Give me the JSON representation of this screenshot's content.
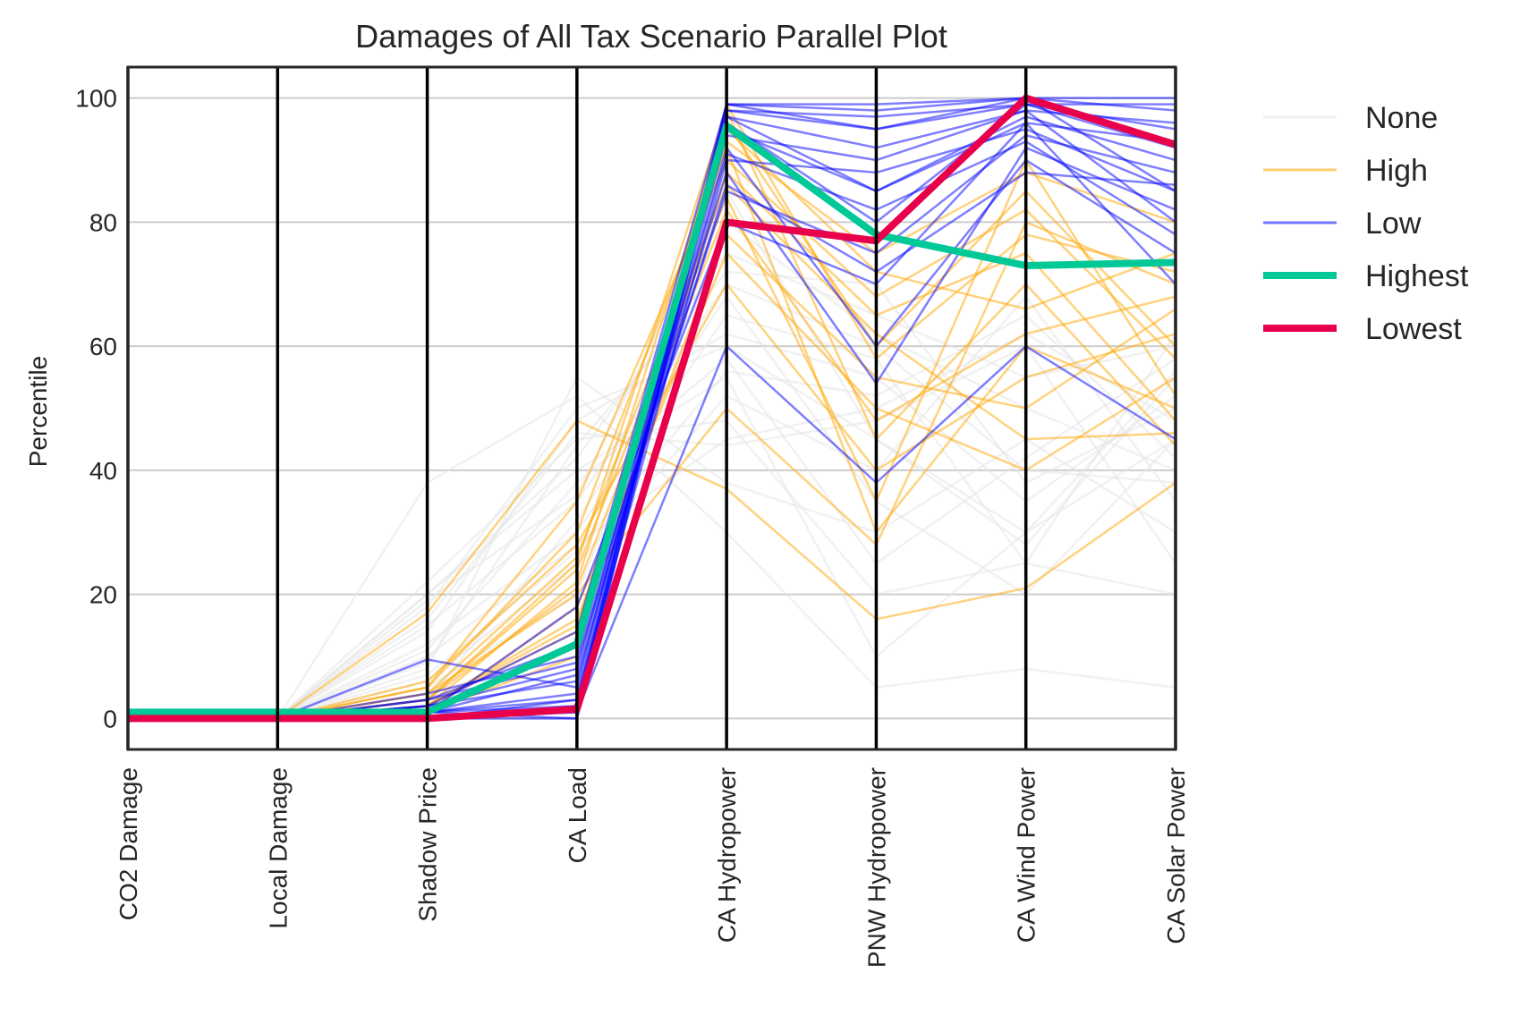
{
  "chart_data": {
    "type": "line",
    "subtype": "parallel-coordinates",
    "title": "Damages of All Tax Scenario Parallel Plot",
    "xlabel": "",
    "ylabel": "Percentile",
    "ylim": [
      -5,
      105
    ],
    "yticks": [
      0,
      20,
      40,
      60,
      80,
      100
    ],
    "grid": true,
    "legend_position": "outside-right",
    "categories": [
      "CO2 Damage",
      "Local Damage",
      "Shadow Price",
      "CA Load",
      "CA Hydropower",
      "PNW Hydropower",
      "CA Wind Power",
      "CA Solar Power"
    ],
    "colors": {
      "None": "#e6e6e6",
      "High": "#ffa500",
      "Low": "#0000ff",
      "Highest": "#00c896",
      "Lowest": "#e8004b",
      "axis": "#000000",
      "grid": "#cccccc"
    },
    "legend": [
      "None",
      "High",
      "Low",
      "Highest",
      "Lowest"
    ],
    "series": [
      {
        "name": "None",
        "lines": [
          [
            0,
            0,
            38,
            52,
            30,
            5,
            8,
            5
          ],
          [
            0,
            0,
            22,
            45,
            48,
            20,
            25,
            62
          ],
          [
            0,
            0,
            20,
            40,
            55,
            10,
            30,
            45
          ],
          [
            0,
            0,
            18,
            50,
            60,
            45,
            28,
            55
          ],
          [
            0,
            0,
            15,
            35,
            70,
            60,
            40,
            38
          ],
          [
            0,
            0,
            12,
            30,
            65,
            58,
            25,
            20
          ],
          [
            0,
            0,
            10,
            28,
            45,
            50,
            62,
            48
          ],
          [
            0,
            0,
            8,
            55,
            38,
            30,
            45,
            30
          ],
          [
            0,
            0,
            20,
            42,
            75,
            65,
            55,
            60
          ],
          [
            0,
            0,
            6,
            25,
            52,
            40,
            68,
            35
          ],
          [
            0,
            0,
            14,
            48,
            62,
            55,
            35,
            52
          ],
          [
            0,
            0,
            5,
            20,
            80,
            62,
            50,
            40
          ],
          [
            0,
            0,
            11,
            38,
            58,
            25,
            42,
            58
          ],
          [
            0,
            0,
            16,
            46,
            44,
            48,
            60,
            25
          ],
          [
            0,
            0,
            3,
            32,
            68,
            35,
            20,
            45
          ],
          [
            0,
            0,
            9,
            44,
            72,
            70,
            38,
            50
          ],
          [
            0,
            0,
            19,
            36,
            85,
            45,
            30,
            56
          ],
          [
            0,
            0,
            7,
            27,
            56,
            52,
            65,
            42
          ]
        ]
      },
      {
        "name": "High",
        "lines": [
          [
            0,
            0,
            17,
            48,
            37,
            16,
            21,
            38
          ],
          [
            0,
            0,
            5,
            30,
            92,
            30,
            60,
            50
          ],
          [
            0,
            0,
            3,
            25,
            98,
            45,
            70,
            44
          ],
          [
            0,
            0,
            2,
            22,
            96,
            60,
            85,
            60
          ],
          [
            0,
            0,
            4,
            20,
            50,
            28,
            80,
            70
          ],
          [
            0,
            0,
            1,
            18,
            75,
            50,
            40,
            55
          ],
          [
            0,
            0,
            2,
            15,
            88,
            65,
            75,
            48
          ],
          [
            0,
            0,
            6,
            28,
            70,
            40,
            55,
            62
          ],
          [
            0,
            0,
            1,
            12,
            95,
            72,
            66,
            75
          ],
          [
            0,
            0,
            3,
            24,
            84,
            35,
            90,
            52
          ],
          [
            0,
            0,
            2,
            16,
            78,
            55,
            50,
            66
          ],
          [
            0,
            0,
            5,
            35,
            90,
            68,
            82,
            58
          ],
          [
            0,
            0,
            1,
            10,
            99,
            58,
            78,
            72
          ],
          [
            0,
            0,
            4,
            26,
            86,
            62,
            45,
            46
          ],
          [
            0,
            0,
            2,
            14,
            93,
            75,
            88,
            80
          ],
          [
            0,
            0,
            3,
            21,
            82,
            48,
            62,
            68
          ]
        ]
      },
      {
        "name": "Low",
        "lines": [
          [
            0,
            0,
            9.5,
            5,
            98,
            95,
            99,
            95
          ],
          [
            0,
            0,
            1,
            2,
            99,
            98,
            100,
            98
          ],
          [
            0,
            0,
            2,
            8,
            95,
            85,
            97,
            90
          ],
          [
            0,
            0,
            0,
            3,
            90,
            88,
            95,
            85
          ],
          [
            0,
            0,
            1,
            0,
            97,
            92,
            98,
            80
          ],
          [
            0,
            0,
            3,
            12,
            85,
            75,
            94,
            88
          ],
          [
            0,
            0,
            0,
            1,
            99,
            99,
            100,
            100
          ],
          [
            0,
            0,
            2,
            6,
            92,
            60,
            90,
            75
          ],
          [
            0,
            0,
            1,
            18,
            80,
            70,
            96,
            70
          ],
          [
            0,
            0,
            0,
            2,
            96,
            80,
            99,
            92
          ],
          [
            0,
            0,
            4,
            10,
            88,
            54,
            92,
            82
          ],
          [
            0,
            0,
            1,
            4,
            94,
            90,
            98,
            96
          ],
          [
            0,
            0,
            0,
            1,
            60,
            38,
            60,
            45
          ],
          [
            0,
            0,
            2,
            14,
            99,
            95,
            100,
            85
          ],
          [
            0,
            0,
            1,
            7,
            91,
            82,
            93,
            78
          ],
          [
            0,
            0,
            0,
            0,
            98,
            97,
            99,
            99
          ],
          [
            0,
            0,
            3,
            9,
            86,
            72,
            88,
            86
          ],
          [
            0,
            0,
            1,
            3,
            97,
            85,
            96,
            93
          ]
        ]
      },
      {
        "name": "Highest",
        "values": [
          1,
          1,
          1,
          12,
          95.5,
          78,
          73,
          73.5
        ]
      },
      {
        "name": "Lowest",
        "values": [
          0,
          0,
          0,
          1.5,
          80,
          77,
          100,
          92.5
        ]
      }
    ]
  }
}
